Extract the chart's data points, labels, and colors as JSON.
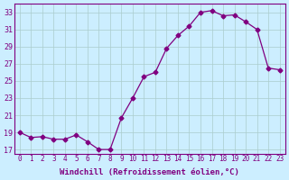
{
  "x": [
    0,
    1,
    2,
    3,
    4,
    5,
    6,
    7,
    8,
    9,
    10,
    11,
    12,
    13,
    14,
    15,
    16,
    17,
    18,
    19,
    20,
    21,
    22,
    23
  ],
  "y": [
    19.0,
    18.4,
    18.5,
    18.2,
    18.2,
    18.7,
    17.9,
    17.0,
    17.0,
    20.7,
    23.0,
    25.5,
    26.0,
    28.8,
    30.3,
    31.4,
    33.0,
    33.2,
    32.6,
    32.7,
    31.9,
    31.0,
    26.5,
    26.3
  ],
  "x_labels": [
    "0",
    "1",
    "2",
    "3",
    "4",
    "5",
    "6",
    "7",
    "8",
    "9",
    "10",
    "11",
    "12",
    "13",
    "14",
    "15",
    "16",
    "17",
    "18",
    "19",
    "20",
    "21",
    "22",
    "23"
  ],
  "ylim": [
    16.5,
    34
  ],
  "yticks": [
    17,
    19,
    21,
    23,
    25,
    27,
    29,
    31,
    33
  ],
  "xlabel": "Windchill (Refroidissement éolien,°C)",
  "line_color": "#800080",
  "marker": "D",
  "bg_color": "#cceeff",
  "grid_color": "#aacccc"
}
